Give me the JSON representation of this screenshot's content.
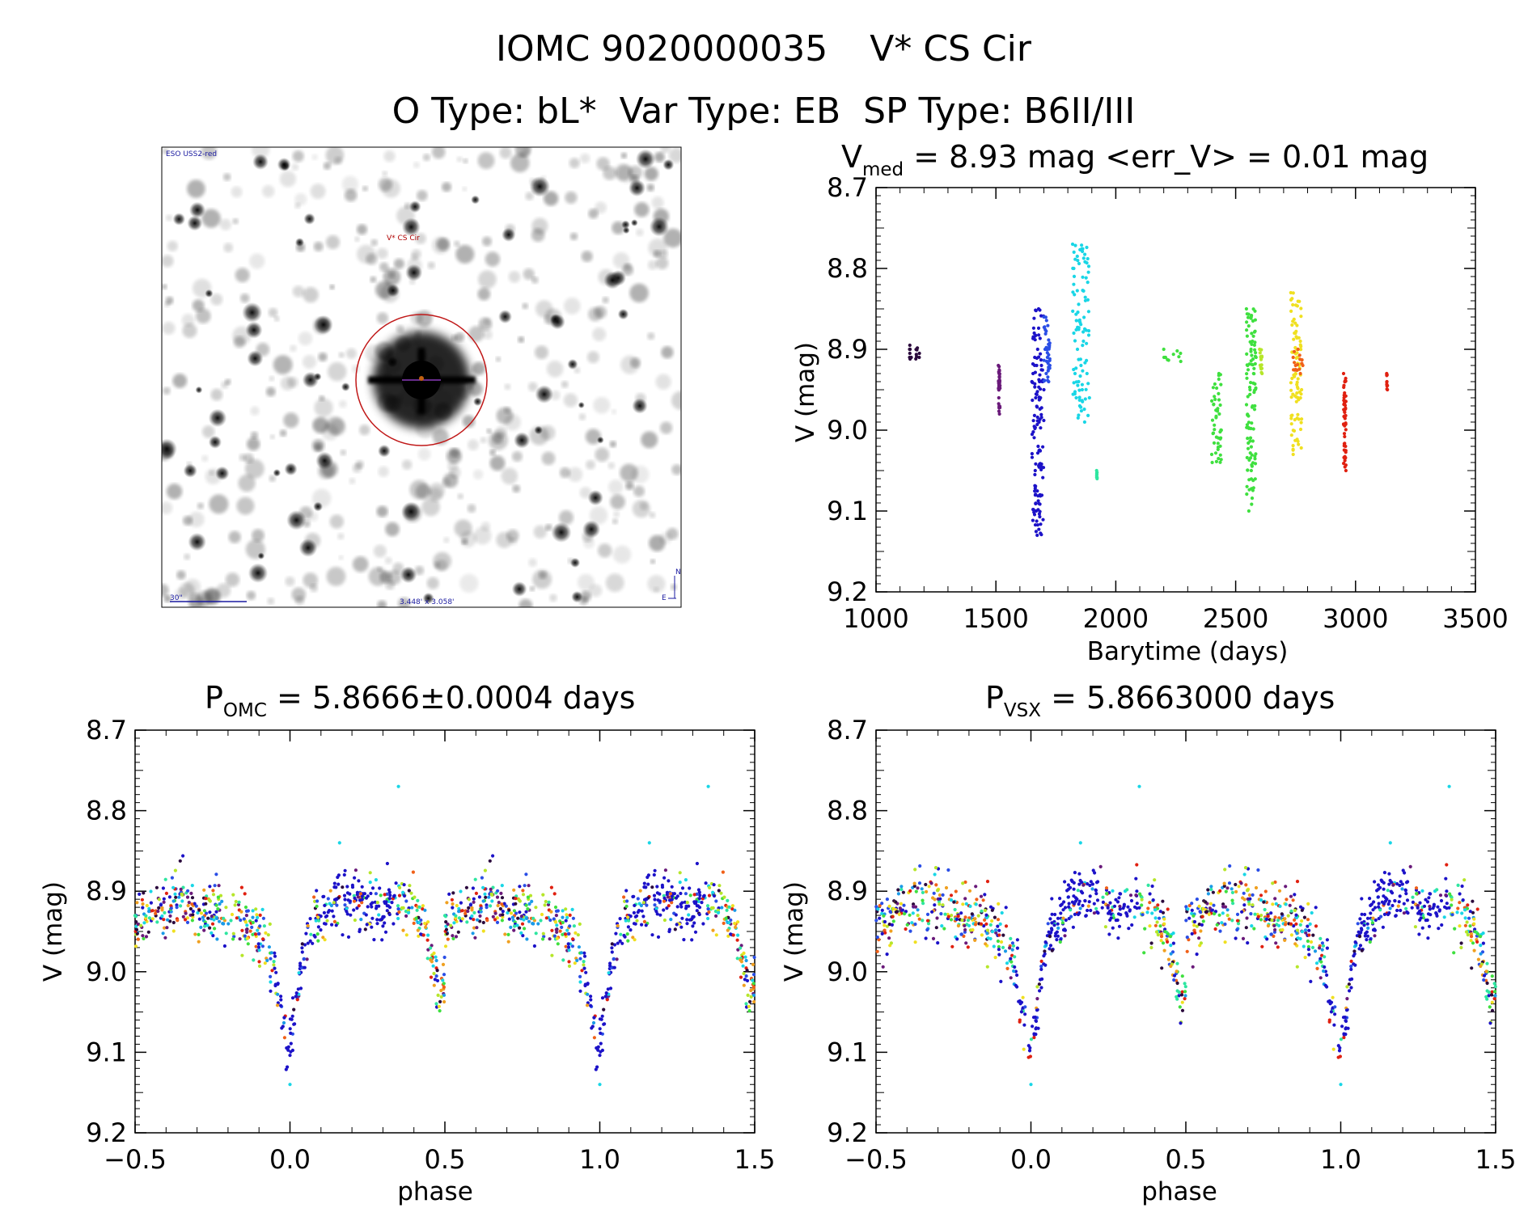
{
  "header": {
    "line1_id": "IOMC 9020000035",
    "line1_name": "V* CS Cir",
    "line2": "O Type: bL*  Var Type: EB  SP Type: B6II/III"
  },
  "finder": {
    "survey_label": "ESO USS2-red",
    "target_label": "V* CS Cir",
    "scale_label": "30\"",
    "size_label": "3.448' x 3.058'",
    "north_label": "N",
    "east_label": "E"
  },
  "colors": {
    "rainbow": [
      "#2b0a3d",
      "#6a1a7a",
      "#1c12c8",
      "#2a4ee6",
      "#1a9ae8",
      "#19d6e6",
      "#2ee6a0",
      "#3fe03f",
      "#b6e62a",
      "#f0e020",
      "#f0a020",
      "#f06018",
      "#e02010"
    ],
    "circle": "#c01818"
  },
  "chart_data": [
    {
      "type": "scatter",
      "id": "timeseries",
      "title_main": "V",
      "title_sub": "med",
      "title_rest": " = 8.93 mag <err_V> = 0.01 mag",
      "xlabel": "Barytime (days)",
      "ylabel": "V (mag)",
      "xlim": [
        1000,
        3500
      ],
      "ylim": [
        9.2,
        8.7
      ],
      "xticks": [
        1000,
        1500,
        2000,
        2500,
        3000,
        3500
      ],
      "yticks": [
        8.7,
        8.8,
        8.9,
        9.0,
        9.1,
        9.2
      ],
      "series": [
        {
          "name": "seg1",
          "x": [
            1140,
            1140,
            1141,
            1141,
            1142,
            1142,
            1180,
            1181
          ],
          "y": [
            8.9,
            8.91,
            8.895,
            8.905,
            8.9,
            8.912,
            8.91,
            8.905
          ],
          "color": 0
        },
        {
          "name": "seg2",
          "x": [
            1510,
            1511,
            1512,
            1512,
            1513,
            1514,
            1515,
            1516,
            1517
          ],
          "y": [
            8.92,
            8.94,
            8.95,
            8.96,
            8.93,
            8.97,
            8.98,
            8.94,
            8.945
          ],
          "color": 1
        },
        {
          "name": "seg3",
          "x": [
            1650,
            1655,
            1660,
            1662,
            1664,
            1666,
            1668,
            1670,
            1672,
            1674,
            1676,
            1678,
            1680,
            1682,
            1684,
            1686,
            1690,
            1695,
            1700
          ],
          "y": [
            8.94,
            8.93,
            8.88,
            8.91,
            9.05,
            8.96,
            9.1,
            8.92,
            9.13,
            8.9,
            9.02,
            8.85,
            8.99,
            8.94,
            9.08,
            8.96,
            8.92,
            8.94,
            8.95
          ],
          "color": 2
        },
        {
          "name": "seg4",
          "x": [
            1700,
            1705,
            1710,
            1715,
            1720,
            1725
          ],
          "y": [
            8.86,
            8.9,
            8.93,
            8.91,
            8.94,
            8.92
          ],
          "color": 3
        },
        {
          "name": "seg5",
          "x": [
            1820,
            1825,
            1830,
            1835,
            1840,
            1845,
            1850,
            1855,
            1860,
            1865,
            1870,
            1880,
            1890
          ],
          "y": [
            8.77,
            8.88,
            8.93,
            8.96,
            8.9,
            8.94,
            8.97,
            8.92,
            8.95,
            8.89,
            8.99,
            8.93,
            8.96
          ],
          "color": 5
        },
        {
          "name": "seg6",
          "x": [
            1920,
            1921,
            1922
          ],
          "y": [
            9.05,
            9.055,
            9.06
          ],
          "color": 6
        },
        {
          "name": "seg7",
          "x": [
            2200,
            2201,
            2270,
            2271
          ],
          "y": [
            8.9,
            8.91,
            8.905,
            8.915
          ],
          "color": 7
        },
        {
          "name": "seg8",
          "x": [
            2400,
            2402,
            2430,
            2432,
            2440
          ],
          "y": [
            9.03,
            9.04,
            8.93,
            8.98,
            9.0
          ],
          "color": 7
        },
        {
          "name": "seg9",
          "x": [
            2545,
            2550,
            2555,
            2560,
            2565,
            2570,
            2575,
            2580,
            2585
          ],
          "y": [
            8.85,
            8.92,
            9.1,
            8.95,
            9.05,
            8.89,
            8.93,
            8.97,
            8.91
          ],
          "color": 7
        },
        {
          "name": "seg10",
          "x": [
            2600,
            2605,
            2610
          ],
          "y": [
            8.9,
            8.91,
            8.93
          ],
          "color": 8
        },
        {
          "name": "seg11",
          "x": [
            2730,
            2735,
            2740,
            2745,
            2750,
            2755,
            2760,
            2765,
            2770,
            2775
          ],
          "y": [
            8.83,
            8.87,
            9.03,
            8.88,
            8.93,
            8.9,
            8.96,
            8.92,
            8.89,
            8.95
          ],
          "color": 9
        },
        {
          "name": "seg12",
          "x": [
            2740,
            2750,
            2760,
            2770,
            2780
          ],
          "y": [
            8.91,
            8.92,
            8.9,
            8.93,
            8.92
          ],
          "color": 11
        },
        {
          "name": "seg13",
          "x": [
            2950,
            2952,
            2955,
            2958,
            2960
          ],
          "y": [
            8.93,
            8.96,
            8.94,
            9.02,
            9.05
          ],
          "color": 12
        },
        {
          "name": "seg14",
          "x": [
            3130,
            3131,
            3132,
            3133
          ],
          "y": [
            8.93,
            8.94,
            8.945,
            8.95
          ],
          "color": 12
        }
      ]
    },
    {
      "type": "scatter",
      "id": "phase_omc",
      "title_main": "P",
      "title_sub": "OMC",
      "title_rest": " = 5.8666±0.0004 days",
      "xlabel": "phase",
      "ylabel": "V (mag)",
      "xlim": [
        -0.5,
        1.5
      ],
      "ylim": [
        9.2,
        8.7
      ],
      "xticks": [
        "−0.5",
        "0.0",
        "0.5",
        "1.0",
        "1.5"
      ],
      "xtick_values": [
        -0.5,
        0.0,
        0.5,
        1.0,
        1.5
      ],
      "yticks": [
        8.7,
        8.8,
        8.9,
        9.0,
        9.1,
        9.2
      ],
      "curve": {
        "phase": [
          -0.5,
          -0.45,
          -0.4,
          -0.35,
          -0.3,
          -0.25,
          -0.2,
          -0.15,
          -0.1,
          -0.07,
          -0.04,
          -0.02,
          0.0,
          0.02,
          0.04,
          0.06,
          0.1,
          0.15,
          0.2,
          0.25,
          0.3,
          0.35,
          0.4,
          0.45,
          0.48,
          0.5
        ],
        "mag": [
          8.94,
          8.93,
          8.92,
          8.91,
          8.92,
          8.92,
          8.93,
          8.94,
          8.95,
          8.97,
          9.02,
          9.07,
          9.1,
          9.05,
          8.98,
          8.95,
          8.93,
          8.91,
          8.91,
          8.92,
          8.92,
          8.91,
          8.92,
          8.97,
          9.03,
          9.02
        ]
      },
      "outliers": [
        {
          "phase": 0.35,
          "mag": 8.77
        },
        {
          "phase": 0.16,
          "mag": 8.84
        },
        {
          "phase": 0.0,
          "mag": 9.14
        }
      ]
    },
    {
      "type": "scatter",
      "id": "phase_vsx",
      "title_main": "P",
      "title_sub": "VSX",
      "title_rest": " = 5.8663000 days",
      "xlabel": "phase",
      "ylabel": "V (mag)",
      "xlim": [
        -0.5,
        1.5
      ],
      "ylim": [
        9.2,
        8.7
      ],
      "xticks": [
        "−0.5",
        "0.0",
        "0.5",
        "1.0",
        "1.5"
      ],
      "xtick_values": [
        -0.5,
        0.0,
        0.5,
        1.0,
        1.5
      ],
      "yticks": [
        8.7,
        8.8,
        8.9,
        9.0,
        9.1,
        9.2
      ],
      "curve": {
        "phase": [
          -0.5,
          -0.45,
          -0.4,
          -0.35,
          -0.3,
          -0.25,
          -0.2,
          -0.15,
          -0.1,
          -0.07,
          -0.04,
          -0.02,
          0.0,
          0.02,
          0.04,
          0.06,
          0.1,
          0.15,
          0.2,
          0.25,
          0.3,
          0.35,
          0.4,
          0.45,
          0.48,
          0.5
        ],
        "mag": [
          8.94,
          8.93,
          8.92,
          8.91,
          8.92,
          8.92,
          8.93,
          8.94,
          8.95,
          8.97,
          9.02,
          9.07,
          9.1,
          9.05,
          8.98,
          8.95,
          8.93,
          8.91,
          8.91,
          8.92,
          8.92,
          8.91,
          8.92,
          8.97,
          9.03,
          9.02
        ]
      },
      "outliers": [
        {
          "phase": 0.35,
          "mag": 8.77
        },
        {
          "phase": 0.16,
          "mag": 8.84
        },
        {
          "phase": 0.0,
          "mag": 9.14
        }
      ]
    }
  ]
}
